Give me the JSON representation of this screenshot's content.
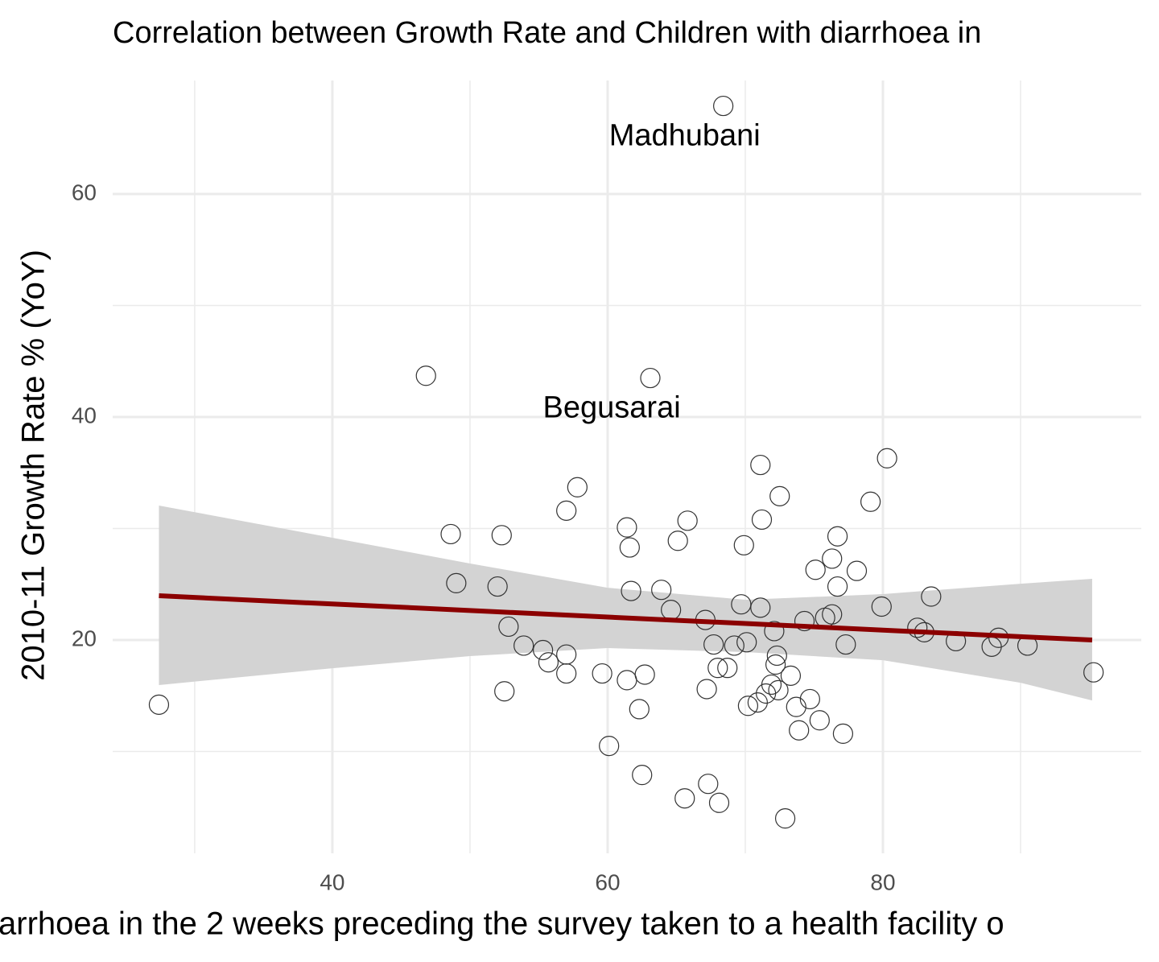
{
  "chart_data": {
    "type": "scatter",
    "title": "Correlation between Growth Rate and Children with diarrhoea in",
    "xlabel": "arrhoea in the 2 weeks preceding the survey taken to a health facility o",
    "ylabel": "2010-11 Growth Rate % (YoY)",
    "x": [
      27.4,
      46.8,
      48.6,
      49.0,
      52.3,
      52.0,
      52.8,
      52.5,
      53.9,
      55.3,
      55.7,
      57.0,
      57.8,
      57.0,
      57.0,
      59.6,
      60.1,
      61.4,
      61.6,
      61.7,
      61.4,
      62.7,
      62.3,
      62.5,
      63.1,
      63.9,
      64.6,
      65.1,
      65.8,
      65.6,
      67.1,
      67.2,
      67.3,
      67.7,
      68.1,
      68.0,
      68.7,
      68.4,
      69.2,
      69.9,
      69.7,
      70.1,
      70.2,
      70.9,
      71.1,
      71.2,
      71.1,
      71.5,
      71.9,
      72.1,
      72.2,
      72.3,
      72.5,
      72.4,
      72.9,
      73.3,
      73.7,
      73.9,
      74.3,
      74.7,
      75.1,
      75.4,
      75.8,
      76.3,
      76.3,
      76.7,
      76.7,
      77.1,
      77.3,
      78.1,
      79.1,
      79.9,
      80.3,
      82.5,
      83.0,
      83.5,
      85.3,
      87.9,
      88.4,
      90.5,
      95.3
    ],
    "values": [
      14.2,
      43.7,
      29.5,
      25.1,
      29.4,
      24.8,
      21.2,
      15.4,
      19.5,
      19.1,
      18.0,
      31.6,
      33.7,
      18.7,
      17.0,
      17.0,
      10.5,
      30.1,
      28.3,
      24.4,
      16.4,
      16.9,
      13.8,
      7.9,
      43.5,
      24.5,
      22.7,
      28.9,
      30.7,
      5.8,
      21.8,
      15.6,
      7.1,
      19.6,
      5.4,
      17.5,
      17.5,
      67.9,
      19.5,
      28.5,
      23.2,
      19.8,
      14.1,
      14.4,
      35.7,
      30.8,
      22.9,
      15.2,
      16.0,
      20.8,
      17.8,
      18.6,
      32.9,
      15.5,
      4.0,
      16.8,
      14.0,
      11.9,
      21.7,
      14.7,
      26.3,
      12.8,
      22.0,
      22.3,
      27.3,
      29.3,
      24.8,
      11.6,
      19.6,
      26.2,
      32.4,
      23.0,
      36.3,
      21.1,
      20.7,
      23.9,
      19.9,
      19.4,
      20.2,
      19.5,
      17.1
    ],
    "color": "#333333",
    "fit": {
      "x": [
        27.4,
        40,
        50,
        60,
        70,
        80,
        90,
        95.2
      ],
      "values": [
        23.97,
        23.23,
        22.65,
        22.06,
        21.48,
        20.89,
        20.3,
        20.0
      ],
      "lower": [
        15.96,
        17.47,
        18.56,
        19.28,
        18.92,
        18.19,
        16.17,
        14.58
      ],
      "upper": [
        32.06,
        29.17,
        26.86,
        24.69,
        23.61,
        24.12,
        25.05,
        25.49
      ],
      "color": "#8b0000",
      "band_color": "#d3d3d3"
    },
    "annotations": [
      {
        "text": "Madhubani",
        "x": 65.6,
        "y": 65.1
      },
      {
        "text": "Begusarai",
        "x": 60.3,
        "y": 40.7
      }
    ],
    "xlim": [
      24.04,
      98.77
    ],
    "xticks": [
      40,
      60,
      80
    ],
    "xminor": [
      30,
      50,
      70,
      90
    ],
    "ylim": [
      0.87,
      70.18
    ],
    "yticks": [
      20,
      40,
      60
    ],
    "yminor": [
      10,
      30,
      50
    ],
    "grid": true
  }
}
